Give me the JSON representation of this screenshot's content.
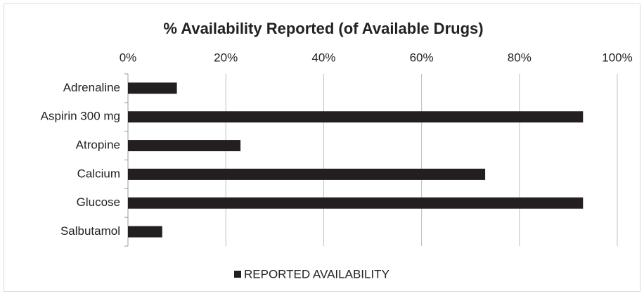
{
  "chart_data": {
    "type": "bar",
    "orientation": "horizontal",
    "title": "% Availability Reported (of Available Drugs)",
    "categories": [
      "Adrenaline",
      "Aspirin 300 mg",
      "Atropine",
      "Calcium",
      "Glucose",
      "Salbutamol"
    ],
    "series": [
      {
        "name": "REPORTED AVAILABILITY",
        "color": "#231f20",
        "values": [
          10,
          93,
          23,
          73,
          93,
          7
        ]
      }
    ],
    "xlim": [
      0,
      100
    ],
    "xticks": [
      {
        "value": 0,
        "label": "0%"
      },
      {
        "value": 20,
        "label": "20%"
      },
      {
        "value": 40,
        "label": "40%"
      },
      {
        "value": 60,
        "label": "60%"
      },
      {
        "value": 80,
        "label": "80%"
      },
      {
        "value": 100,
        "label": "100%"
      }
    ],
    "grid": true,
    "legend": "bottom"
  }
}
